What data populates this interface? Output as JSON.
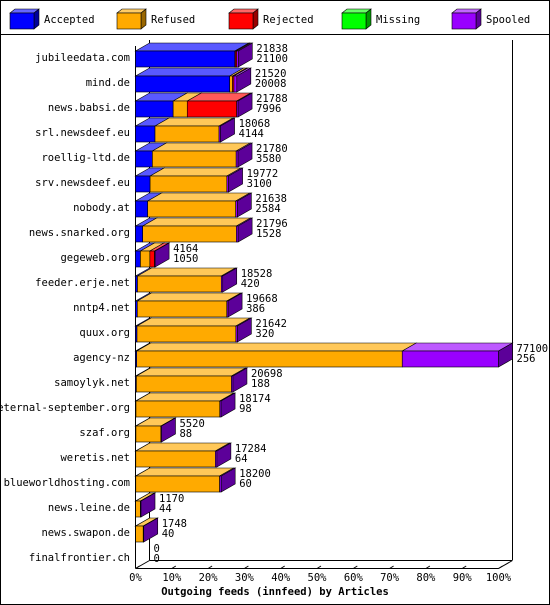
{
  "chart_data": {
    "type": "bar3d-stacked-horizontal",
    "xlabel": "Outgoing feeds (innfeed) by Articles",
    "categories": [
      "jubileedata.com",
      "mind.de",
      "news.babsi.de",
      "srl.newsdeef.eu",
      "roellig-ltd.de",
      "srv.newsdeef.eu",
      "nobody.at",
      "news.snarked.org",
      "gegeweb.org",
      "feeder.erje.net",
      "nntp4.net",
      "quux.org",
      "agency-nz",
      "samoylyk.net",
      "eternal-september.org",
      "szaf.org",
      "weretis.net",
      "blueworldhosting.com",
      "news.leine.de",
      "news.swapon.de",
      "finalfrontier.ch"
    ],
    "offered": [
      21838,
      21520,
      21788,
      18068,
      21780,
      19772,
      21638,
      21796,
      4164,
      18528,
      19668,
      21642,
      77100,
      20698,
      18174,
      5520,
      17284,
      18200,
      1170,
      1748,
      0
    ],
    "series": [
      {
        "name": "Accepted",
        "color": "#0000ff",
        "values": [
          21100,
          20008,
          7996,
          4144,
          3580,
          3100,
          2584,
          1528,
          1050,
          420,
          386,
          320,
          256,
          188,
          98,
          88,
          64,
          60,
          44,
          40,
          0
        ]
      },
      {
        "name": "Refused",
        "color": "#ffaa00",
        "values": [
          100,
          600,
          3000,
          13600,
          17800,
          16300,
          18700,
          19900,
          2000,
          17800,
          19000,
          21000,
          56400,
          20200,
          17800,
          5300,
          16900,
          17800,
          1000,
          1600,
          0
        ]
      },
      {
        "name": "Rejected",
        "color": "#ff0000",
        "values": [
          300,
          300,
          10500,
          0,
          0,
          0,
          0,
          0,
          1000,
          0,
          0,
          0,
          0,
          0,
          0,
          0,
          0,
          0,
          0,
          0,
          0
        ]
      },
      {
        "name": "Missing",
        "color": "#00ff00",
        "values": [
          0,
          0,
          0,
          0,
          0,
          0,
          0,
          0,
          0,
          0,
          0,
          0,
          0,
          0,
          0,
          0,
          0,
          0,
          0,
          0,
          0
        ]
      },
      {
        "name": "Spooled",
        "color": "#9900ff",
        "values": [
          338,
          612,
          292,
          324,
          400,
          372,
          354,
          368,
          114,
          308,
          282,
          322,
          20444,
          310,
          276,
          132,
          320,
          340,
          126,
          108,
          0
        ]
      }
    ],
    "xlim": [
      0,
      77100
    ],
    "xticks": [
      {
        "value": 0,
        "label": "0%"
      },
      {
        "value": 7710,
        "label": "10%"
      },
      {
        "value": 15420,
        "label": "20%"
      },
      {
        "value": 23130,
        "label": "30%"
      },
      {
        "value": 30840,
        "label": "40%"
      },
      {
        "value": 38550,
        "label": "50%"
      },
      {
        "value": 46260,
        "label": "60%"
      },
      {
        "value": 53970,
        "label": "70%"
      },
      {
        "value": 61680,
        "label": "80%"
      },
      {
        "value": 69390,
        "label": "90%"
      },
      {
        "value": 77100,
        "label": "100%"
      }
    ]
  }
}
